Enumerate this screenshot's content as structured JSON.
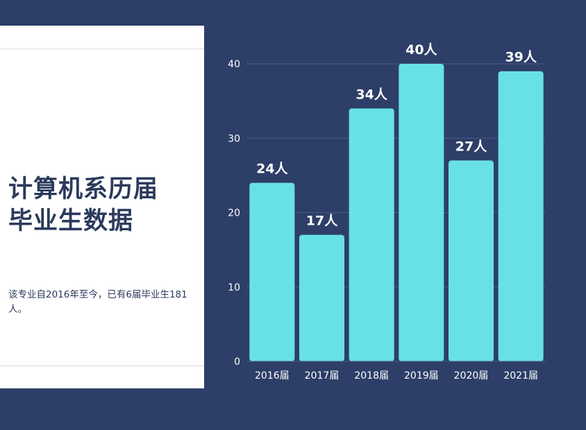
{
  "slide": {
    "title_line1": "计算机系历届",
    "title_line2": "毕业生数据",
    "description": "该专业自2016年至今，已有6届毕业生181人。"
  },
  "chart_data": {
    "type": "bar",
    "categories": [
      "2016届",
      "2017届",
      "2018届",
      "2019届",
      "2020届",
      "2021届"
    ],
    "values": [
      24,
      17,
      34,
      40,
      27,
      39
    ],
    "data_labels": [
      "24人",
      "17人",
      "34人",
      "40人",
      "27人",
      "39人"
    ],
    "yticks": [
      "0",
      "10",
      "20",
      "30",
      "40"
    ],
    "ylim": [
      0,
      40
    ],
    "grid": true,
    "colors": {
      "bar": "#68e1e6",
      "background": "#2d3f68",
      "grid": "#4a5b82",
      "label": "#ffffff"
    }
  }
}
